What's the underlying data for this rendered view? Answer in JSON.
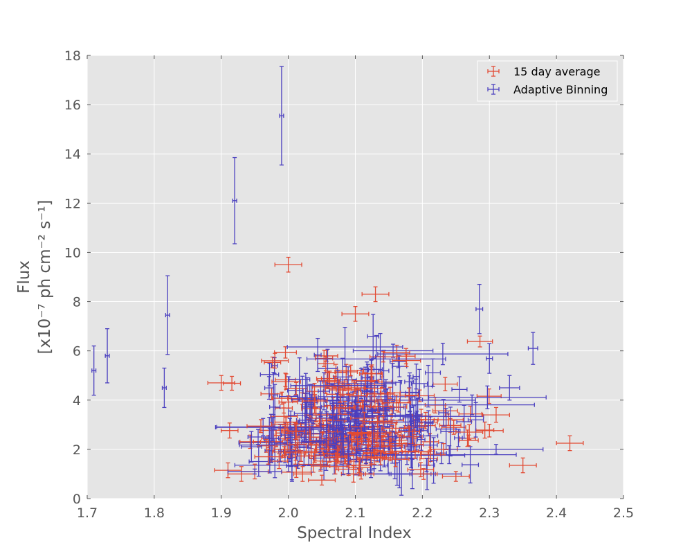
{
  "chart_data": {
    "type": "scatter",
    "title": "",
    "xlabel": "Spectral Index",
    "ylabel_line1": "Flux",
    "ylabel_line2": "[x10⁻⁷ ph cm⁻² s⁻¹]",
    "xlim": [
      1.7,
      2.5
    ],
    "ylim": [
      0,
      18
    ],
    "xticks": [
      1.7,
      1.8,
      1.9,
      2.0,
      2.1,
      2.2,
      2.3,
      2.4,
      2.5
    ],
    "xtick_labels": [
      "1.7",
      "1.8",
      "1.9",
      "2.0",
      "2.1",
      "2.2",
      "2.3",
      "2.4",
      "2.5"
    ],
    "yticks": [
      0,
      2,
      4,
      6,
      8,
      10,
      12,
      14,
      16,
      18
    ],
    "ytick_labels": [
      "0",
      "2",
      "4",
      "6",
      "8",
      "10",
      "12",
      "14",
      "16",
      "18"
    ],
    "grid": true,
    "background": "#e5e5e5",
    "legend_position": "top-right",
    "series": [
      {
        "name": "15 day average",
        "color": "#e24a33",
        "points": [
          {
            "x": 1.9,
            "y": 4.7,
            "xerr": 0.02,
            "yerr": 0.3
          },
          {
            "x": 1.91,
            "y": 1.15,
            "xerr": 0.02,
            "yerr": 0.3
          },
          {
            "x": 1.93,
            "y": 1.0,
            "xerr": 0.02,
            "yerr": 0.3
          },
          {
            "x": 1.95,
            "y": 1.1,
            "xerr": 0.02,
            "yerr": 0.3
          },
          {
            "x": 1.97,
            "y": 1.7,
            "xerr": 0.02,
            "yerr": 0.3
          },
          {
            "x": 1.98,
            "y": 5.6,
            "xerr": 0.02,
            "yerr": 0.3
          },
          {
            "x": 2.0,
            "y": 9.5,
            "xerr": 0.02,
            "yerr": 0.3
          },
          {
            "x": 2.05,
            "y": 0.75,
            "xerr": 0.02,
            "yerr": 0.2
          },
          {
            "x": 2.07,
            "y": 1.3,
            "xerr": 0.02,
            "yerr": 0.3
          },
          {
            "x": 2.1,
            "y": 7.5,
            "xerr": 0.02,
            "yerr": 0.3
          },
          {
            "x": 2.13,
            "y": 8.3,
            "xerr": 0.02,
            "yerr": 0.3
          },
          {
            "x": 2.16,
            "y": 1.6,
            "xerr": 0.02,
            "yerr": 0.3
          },
          {
            "x": 2.25,
            "y": 0.9,
            "xerr": 0.02,
            "yerr": 0.2
          },
          {
            "x": 2.31,
            "y": 3.4,
            "xerr": 0.02,
            "yerr": 0.3
          },
          {
            "x": 2.35,
            "y": 1.35,
            "xerr": 0.02,
            "yerr": 0.3
          },
          {
            "x": 2.42,
            "y": 2.25,
            "xerr": 0.02,
            "yerr": 0.3
          },
          {
            "x": 2.27,
            "y": 2.7,
            "xerr": 0.02,
            "yerr": 0.3
          }
        ]
      },
      {
        "name": "Adaptive Binning",
        "color": "#4a3fbf",
        "points": [
          {
            "x": 1.71,
            "y": 5.2,
            "xerr": 0.003,
            "yerr": 1.0
          },
          {
            "x": 1.73,
            "y": 5.8,
            "xerr": 0.003,
            "yerr": 1.1
          },
          {
            "x": 1.815,
            "y": 4.5,
            "xerr": 0.003,
            "yerr": 0.8
          },
          {
            "x": 1.82,
            "y": 7.45,
            "xerr": 0.003,
            "yerr": 1.6
          },
          {
            "x": 1.92,
            "y": 12.1,
            "xerr": 0.003,
            "yerr": 1.75
          },
          {
            "x": 1.99,
            "y": 15.55,
            "xerr": 0.003,
            "yerr": 2.0
          },
          {
            "x": 2.33,
            "y": 4.5,
            "xerr": 0.015,
            "yerr": 0.5
          },
          {
            "x": 2.365,
            "y": 6.1,
            "xerr": 0.007,
            "yerr": 0.65
          },
          {
            "x": 2.285,
            "y": 7.7,
            "xerr": 0.005,
            "yerr": 1.0
          },
          {
            "x": 2.31,
            "y": 2.0,
            "xerr": 0.07,
            "yerr": 0.2
          },
          {
            "x": 1.95,
            "y": 1.1,
            "xerr": 0.04,
            "yerr": 0.1
          }
        ]
      }
    ]
  }
}
